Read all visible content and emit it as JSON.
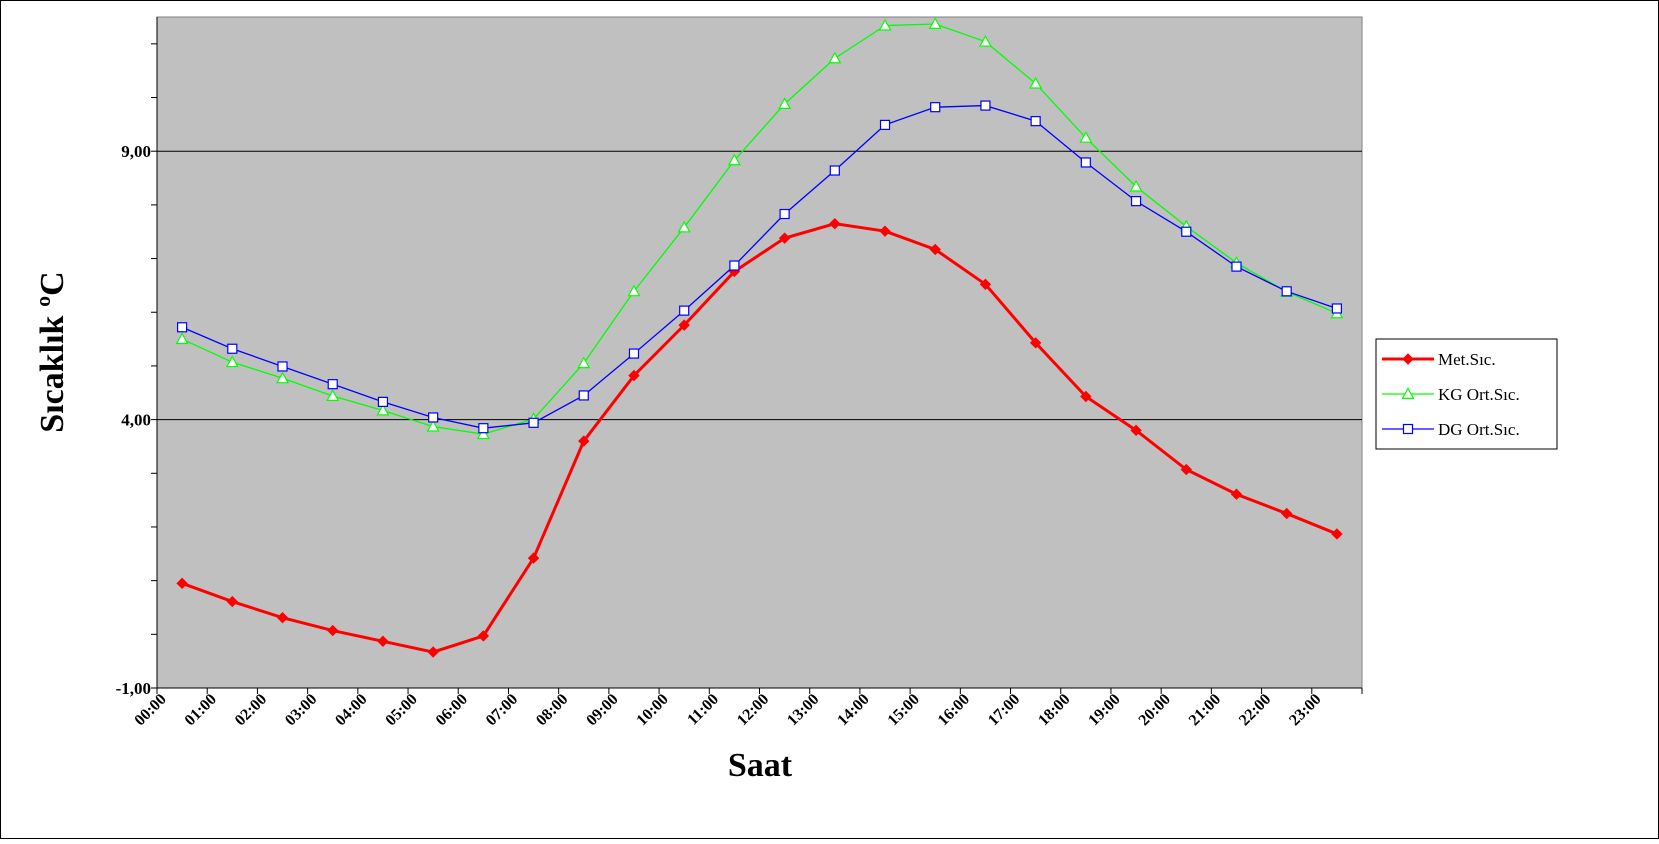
{
  "chart_data": {
    "type": "line",
    "title": "",
    "xlabel": "Saat",
    "ylabel": "Sıcaklık ºC",
    "categories": [
      "00:00",
      "01:00",
      "02:00",
      "03:00",
      "04:00",
      "05:00",
      "06:00",
      "07:00",
      "08:00",
      "09:00",
      "10:00",
      "11:00",
      "12:00",
      "13:00",
      "14:00",
      "15:00",
      "16:00",
      "17:00",
      "18:00",
      "19:00",
      "20:00",
      "21:00",
      "22:00",
      "23:00"
    ],
    "ylim": [
      -1,
      11.5
    ],
    "yticks": [
      -1,
      4,
      9
    ],
    "ytick_labels": [
      "-1,00",
      "4,00",
      "9,00"
    ],
    "grid": true,
    "legend_position": "right",
    "series": [
      {
        "name": "Met.Sıc.",
        "color": "#ff0000",
        "marker": "diamond",
        "values": [
          0.95,
          0.61,
          0.31,
          0.07,
          -0.13,
          -0.33,
          -0.03,
          1.42,
          3.6,
          4.82,
          5.76,
          6.76,
          7.38,
          7.65,
          7.51,
          7.17,
          6.52,
          5.43,
          4.43,
          3.8,
          3.07,
          2.61,
          2.25,
          1.87
        ]
      },
      {
        "name": "KG Ort.Sıc.",
        "color": "#00ff00",
        "marker": "triangle",
        "values": [
          5.5,
          5.07,
          4.77,
          4.44,
          4.17,
          3.87,
          3.73,
          4.01,
          5.05,
          6.39,
          7.58,
          8.83,
          9.88,
          10.73,
          11.34,
          11.37,
          11.04,
          10.26,
          9.25,
          8.34,
          7.6,
          6.92,
          6.38,
          5.98
        ]
      },
      {
        "name": "DG Ort.Sıc.",
        "color": "#0000ff",
        "marker": "square",
        "values": [
          5.72,
          5.32,
          4.99,
          4.66,
          4.33,
          4.04,
          3.84,
          3.94,
          4.45,
          5.23,
          6.03,
          6.87,
          7.83,
          8.64,
          9.49,
          9.82,
          9.85,
          9.56,
          8.79,
          8.07,
          7.5,
          6.85,
          6.39,
          6.07
        ]
      }
    ]
  }
}
